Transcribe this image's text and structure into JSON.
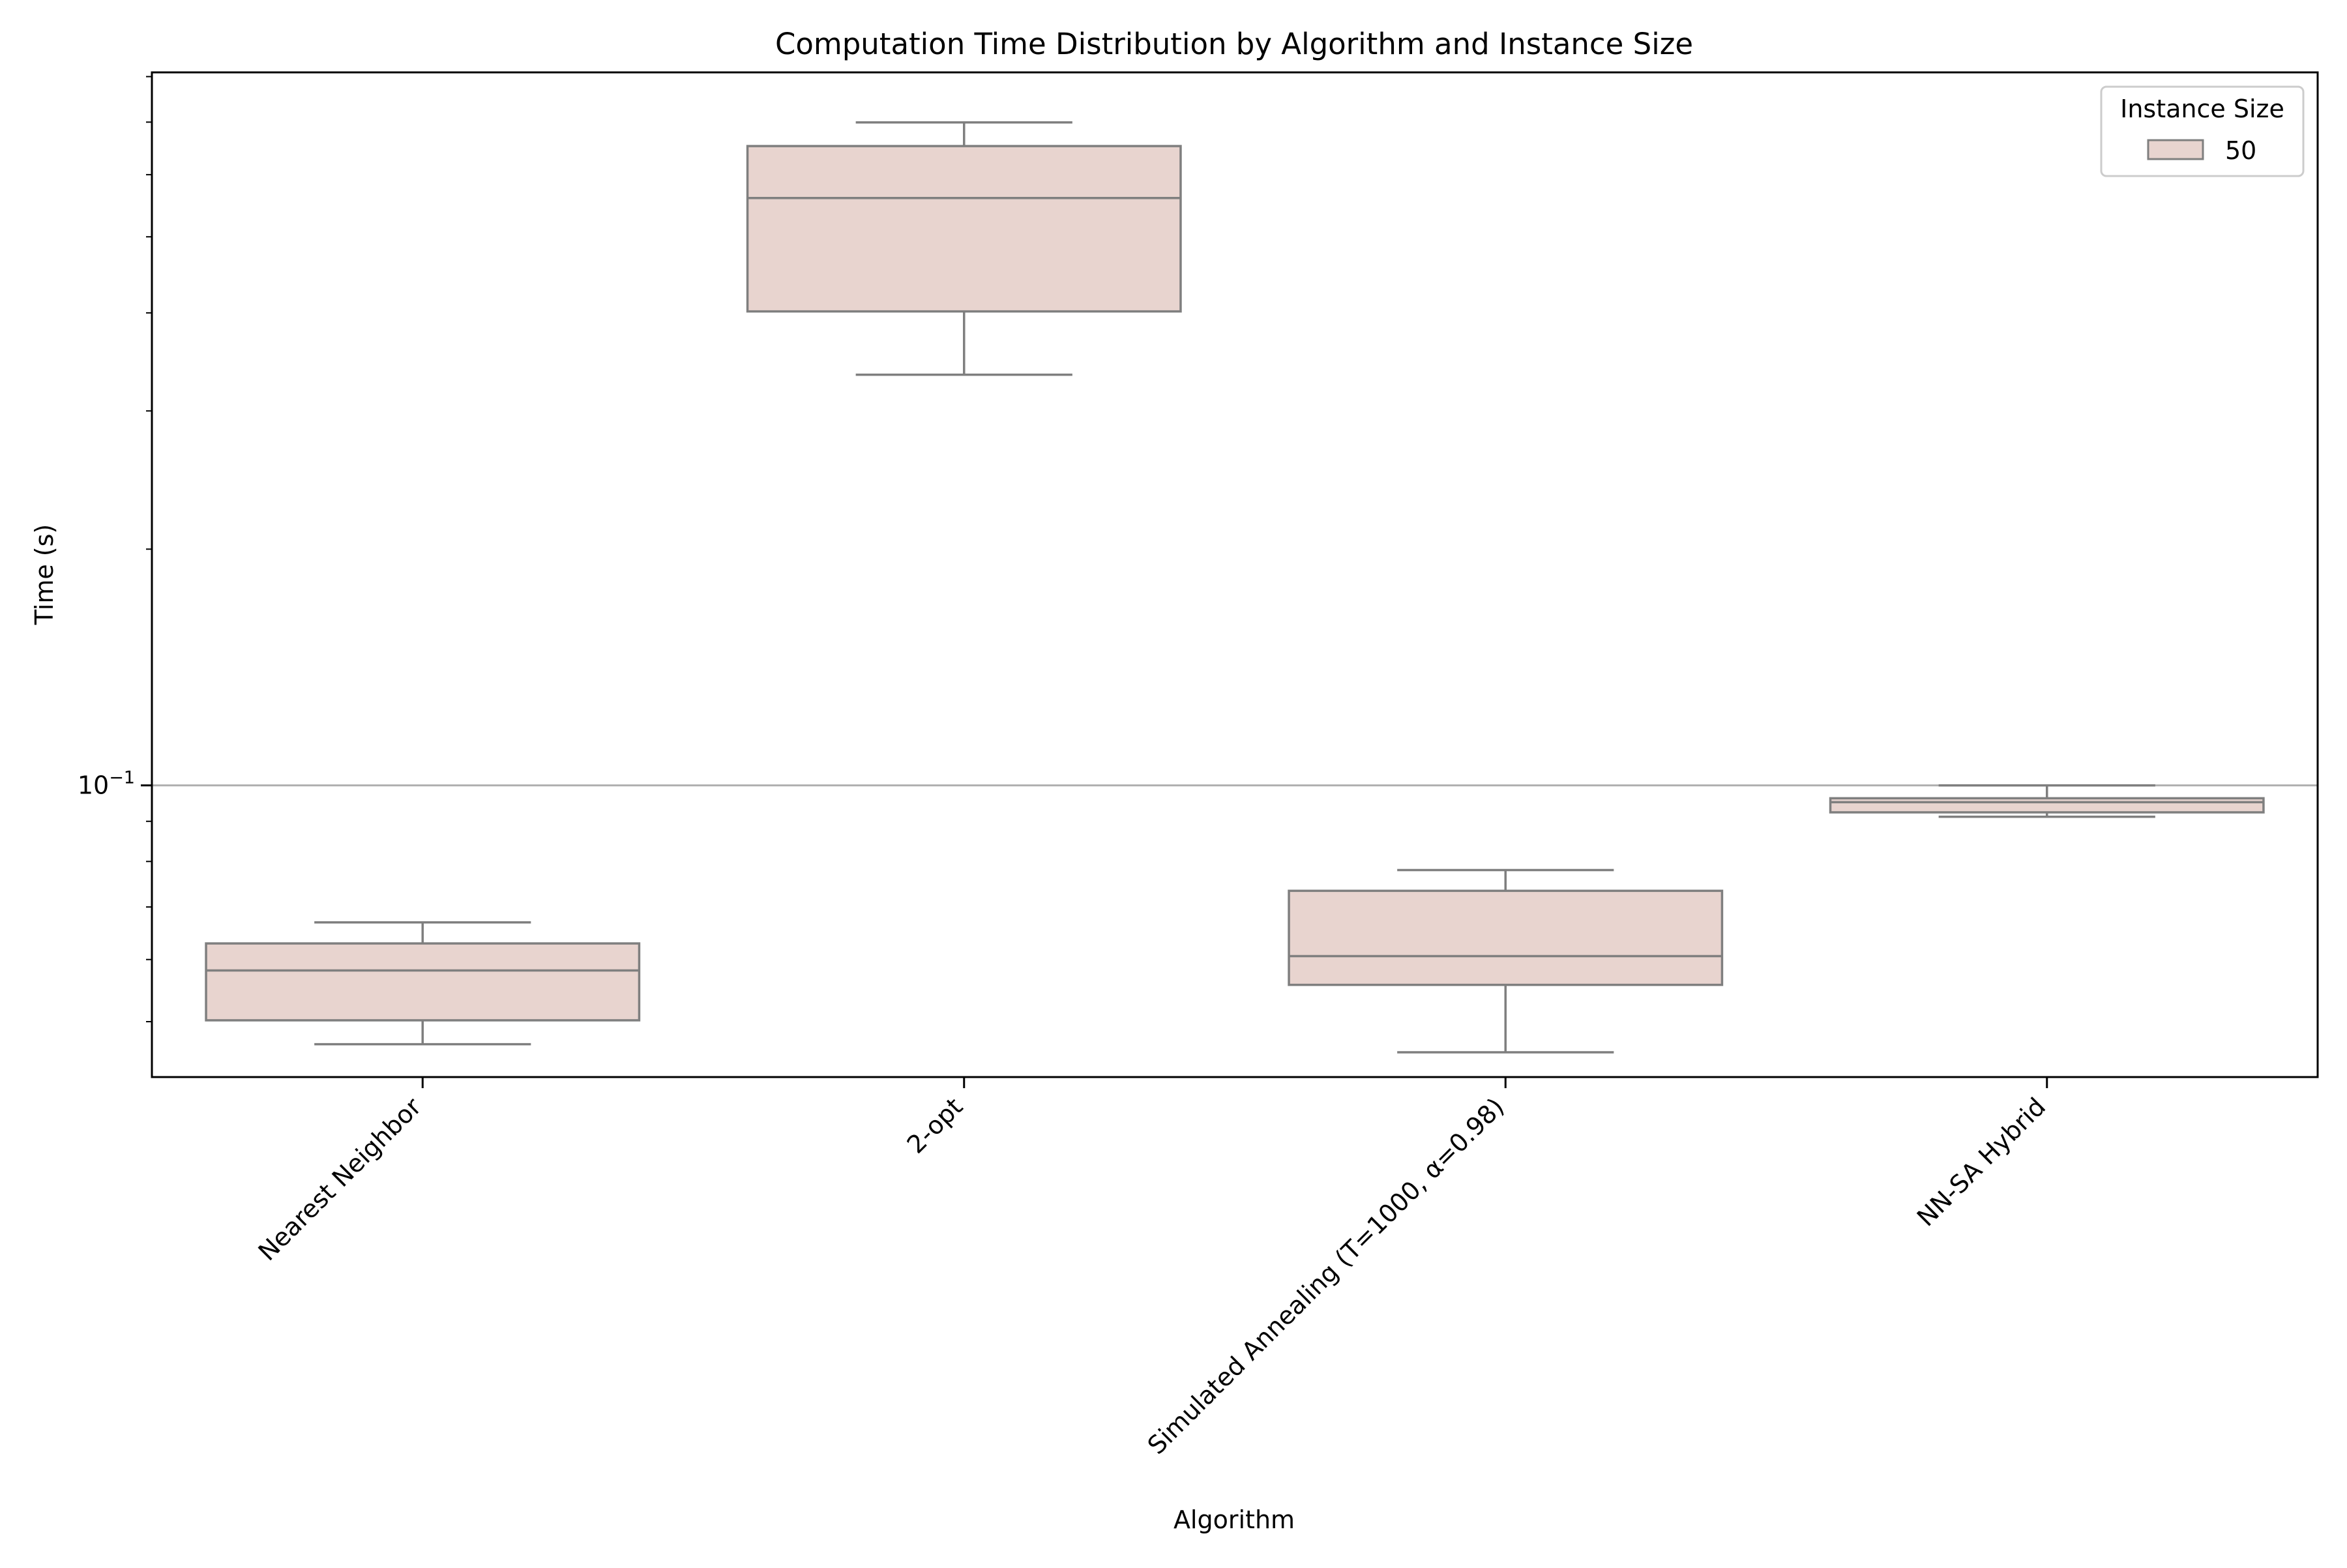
{
  "chart_data": {
    "type": "box",
    "title": "Computation Time Distribution by Algorithm and Instance Size",
    "xlabel": "Algorithm",
    "ylabel": "Time (s)",
    "yscale": "log",
    "ylim": [
      0.0425,
      0.81
    ],
    "ytick_label": {
      "base": "10",
      "exponent": "−1",
      "value": 0.1
    },
    "grid": "horizontal",
    "legend": {
      "title": "Instance Size",
      "placement": "top-right",
      "entries": [
        "50"
      ]
    },
    "colors": {
      "box_fill": "#e8d4cf",
      "box_edge": "#7f7f7f",
      "grid": "#b0b0b0"
    },
    "categories": [
      "Nearest Neighbor",
      "2-opt",
      "Simulated Annealing (T=1000, α=0.98)",
      "NN-SA Hybrid"
    ],
    "series": [
      {
        "name": "50",
        "boxes": [
          {
            "whisker_low": 0.0468,
            "q1": 0.0502,
            "median": 0.0581,
            "q3": 0.0629,
            "whisker_high": 0.0669
          },
          {
            "whisker_low": 0.3336,
            "q1": 0.4017,
            "median": 0.5602,
            "q3": 0.6525,
            "whisker_high": 0.6994
          },
          {
            "whisker_low": 0.0457,
            "q1": 0.0557,
            "median": 0.0606,
            "q3": 0.0734,
            "whisker_high": 0.078
          },
          {
            "whisker_low": 0.0912,
            "q1": 0.0924,
            "median": 0.0952,
            "q3": 0.0963,
            "whisker_high": 0.1
          }
        ]
      }
    ]
  }
}
